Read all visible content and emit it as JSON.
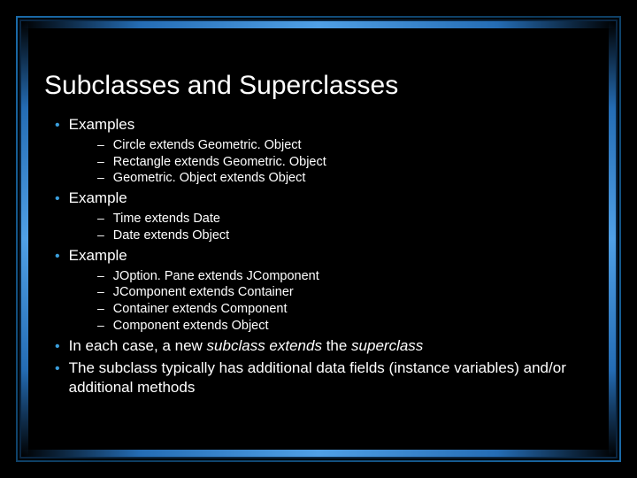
{
  "colors": {
    "background": "#000000",
    "text": "#ffffff",
    "bullet": "#3a9edc",
    "frame_gradient": [
      "#1a6aa8",
      "#0d3a5c",
      "#1a6aa8"
    ],
    "bar_gradient": [
      "rgba(30,80,140,0)",
      "rgba(40,120,200,0.9)",
      "rgba(80,160,230,1)"
    ]
  },
  "typography": {
    "title_fontsize": 30,
    "body_fontsize": 17,
    "sub_fontsize": 14.5,
    "font_family": "Verdana"
  },
  "title": "Subclasses and Superclasses",
  "b0": {
    "label": "Examples"
  },
  "s0": [
    "Circle extends Geometric. Object",
    "Rectangle extends Geometric. Object",
    "Geometric. Object extends Object"
  ],
  "b1": {
    "label": "Example"
  },
  "s1": [
    "Time extends Date",
    "Date extends Object"
  ],
  "b2": {
    "label": "Example"
  },
  "s2": [
    "JOption. Pane extends JComponent",
    "JComponent extends Container",
    "Container extends Component",
    "Component extends Object"
  ],
  "b3": {
    "pre": "In each case, a new ",
    "i1": "subclass extends ",
    "mid": "the ",
    "i2": "superclass"
  },
  "b4": {
    "label": "The subclass typically has additional data fields (instance variables) and/or additional methods"
  }
}
